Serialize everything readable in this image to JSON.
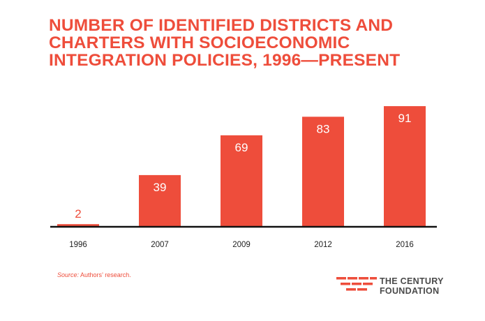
{
  "colors": {
    "accent": "#ee4d3b",
    "axis": "#111111",
    "bar_label": "#ffffff",
    "small_bar_label": "#ee4d3b",
    "logo_text": "#4a4a4a"
  },
  "title_lines": [
    "NUMBER OF IDENTIFIED DISTRICTS AND",
    "CHARTERS WITH SOCIOECONOMIC",
    "INTEGRATION POLICIES, 1996—PRESENT"
  ],
  "chart_data": {
    "type": "bar",
    "title": "NUMBER OF IDENTIFIED DISTRICTS AND CHARTERS WITH SOCIOECONOMIC INTEGRATION POLICIES, 1996—PRESENT",
    "categories": [
      "1996",
      "2007",
      "2009",
      "2012",
      "2016"
    ],
    "values": [
      2,
      39,
      69,
      83,
      91
    ],
    "xlabel": "",
    "ylabel": "",
    "ylim": [
      0,
      100
    ],
    "grid": false,
    "legend": "none",
    "data_labels": true
  },
  "source": {
    "label": "Source:",
    "text": " Authors’ research."
  },
  "logo": {
    "icon": "century-foundation-stripes-icon",
    "line1": "THE CENTURY",
    "line2": "FOUNDATION"
  }
}
